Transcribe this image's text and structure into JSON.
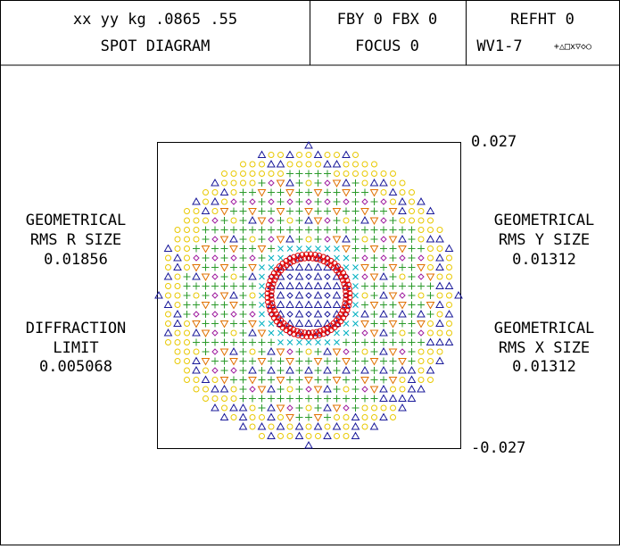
{
  "header": {
    "cells": [
      [
        "xx yy kg .0865 .55",
        "SPOT DIAGRAM"
      ],
      [
        "FBY 0 FBX 0",
        "FOCUS 0"
      ],
      [
        "REFHT 0",
        "WV1-7",
        "+△□x▽◇○"
      ]
    ]
  },
  "left_labels": [
    [
      "GEOMETRICAL",
      "RMS R SIZE",
      "0.01856"
    ],
    [
      "DIFFRACTION",
      "LIMIT",
      "0.005068"
    ]
  ],
  "right_labels": [
    [
      "GEOMETRICAL",
      "RMS Y SIZE",
      "0.01312"
    ],
    [
      "GEOMETRICAL",
      "RMS X SIZE",
      "0.01312"
    ]
  ],
  "scale": {
    "top": "0.027",
    "bottom": "-0.027"
  }
}
